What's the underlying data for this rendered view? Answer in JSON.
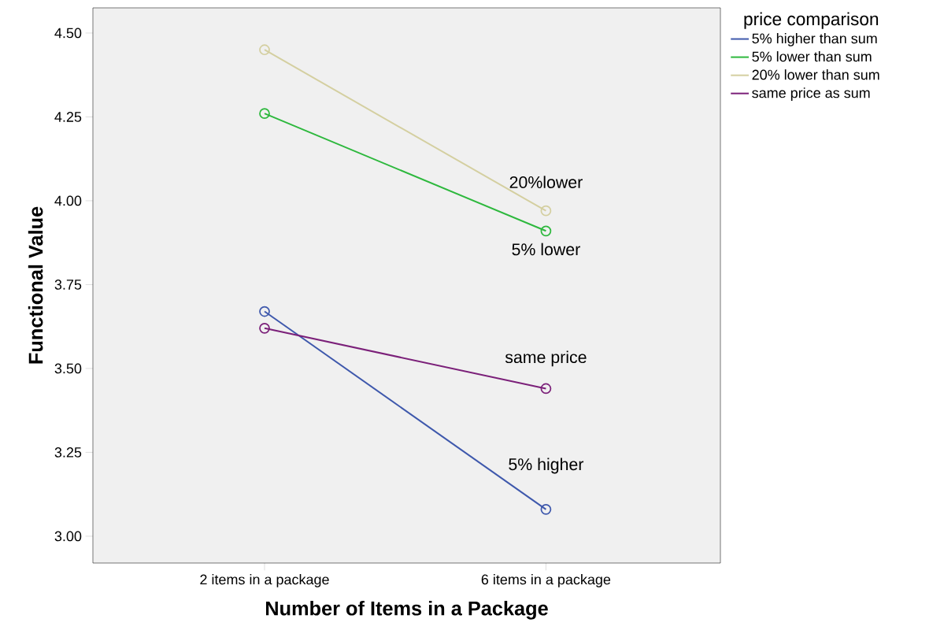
{
  "chart_data": {
    "type": "line",
    "xlabel": "Number of Items in a Package",
    "ylabel": "Functional Value",
    "legend_title": "price comparison",
    "categories": [
      "2 items in a package",
      "6 items in a package"
    ],
    "series": [
      {
        "name": "5% higher than sum",
        "color": "#3e58ac",
        "values": [
          3.67,
          3.08
        ]
      },
      {
        "name": "5% lower than sum",
        "color": "#2db83d",
        "values": [
          4.26,
          3.91
        ]
      },
      {
        "name": "20% lower than sum",
        "color": "#d4cfa0",
        "values": [
          4.45,
          3.97
        ]
      },
      {
        "name": "same price as sum",
        "color": "#7b2079",
        "values": [
          3.62,
          3.44
        ]
      }
    ],
    "annotations": [
      "20%lower",
      "5% lower",
      "same price",
      "5% higher"
    ],
    "ylim": [
      2.92,
      4.575
    ],
    "yticks": [
      {
        "value": 3.0,
        "label": "3.00"
      },
      {
        "value": 3.25,
        "label": "3.25"
      },
      {
        "value": 3.5,
        "label": "3.50"
      },
      {
        "value": 3.75,
        "label": "3.75"
      },
      {
        "value": 4.0,
        "label": "4.00"
      },
      {
        "value": 4.25,
        "label": "4.25"
      },
      {
        "value": 4.5,
        "label": "4.50"
      }
    ],
    "grid": false,
    "legend": "right",
    "marker": "circle",
    "line_style": "solid"
  }
}
